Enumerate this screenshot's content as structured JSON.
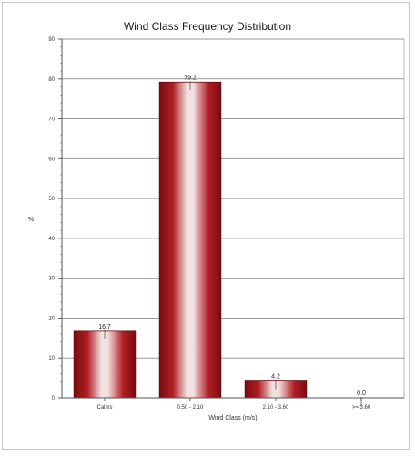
{
  "chart_data": {
    "type": "bar",
    "title": "Wind Class Frequency Distribution",
    "xlabel": "Wind Class (m/s)",
    "ylabel": "%",
    "categories": [
      "Calms",
      "0.50 - 2.10",
      "2.10 - 3.60",
      ">= 3.60"
    ],
    "values": [
      16.7,
      79.2,
      4.2,
      0.0
    ],
    "data_labels": [
      "16.7",
      "79.2",
      "4.2",
      "0.0"
    ],
    "ylim": [
      0,
      90
    ],
    "yticks": [
      0,
      10,
      20,
      30,
      40,
      50,
      60,
      70,
      80,
      90
    ],
    "grid": true,
    "legend": "none",
    "colors": {
      "bar_dark": "#7a0c10",
      "bar_mid": "#b01e24",
      "bar_light": "#f2e1e1",
      "grid": "#9a9a9a",
      "grid_minor": "#cfcfcf"
    }
  }
}
